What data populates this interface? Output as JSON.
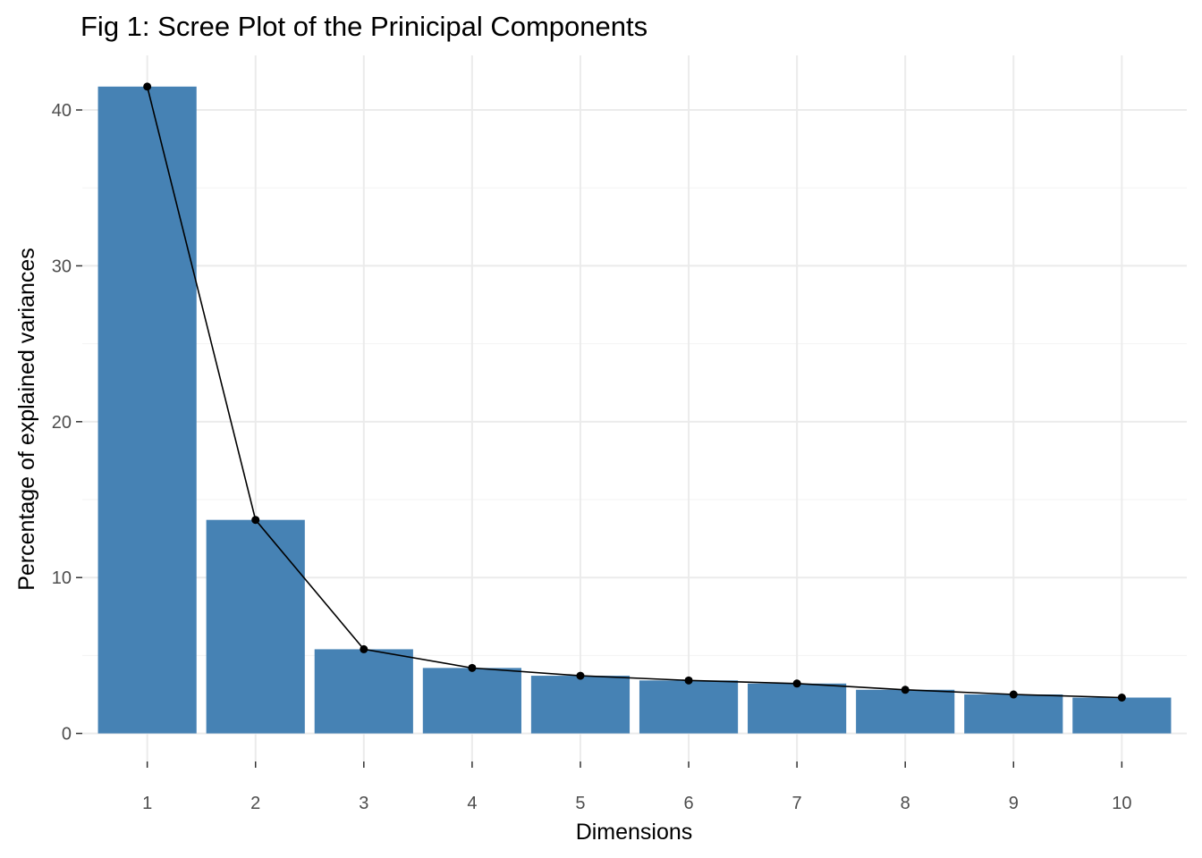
{
  "chart_data": {
    "type": "bar",
    "title": "Fig 1: Scree Plot of the Prinicipal Components",
    "xlabel": "Dimensions",
    "ylabel": "Percentage of explained variances",
    "categories": [
      "1",
      "2",
      "3",
      "4",
      "5",
      "6",
      "7",
      "8",
      "9",
      "10"
    ],
    "values": [
      41.5,
      13.7,
      5.4,
      4.2,
      3.7,
      3.4,
      3.2,
      2.8,
      2.5,
      2.3
    ],
    "line_overlay": true,
    "ylim": [
      -1.8,
      43.5
    ],
    "yticks": [
      0,
      10,
      20,
      30,
      40
    ],
    "grid": true,
    "legend": "none",
    "colors": {
      "bar": "#4682b4",
      "line": "#000000",
      "point": "#000000"
    }
  }
}
